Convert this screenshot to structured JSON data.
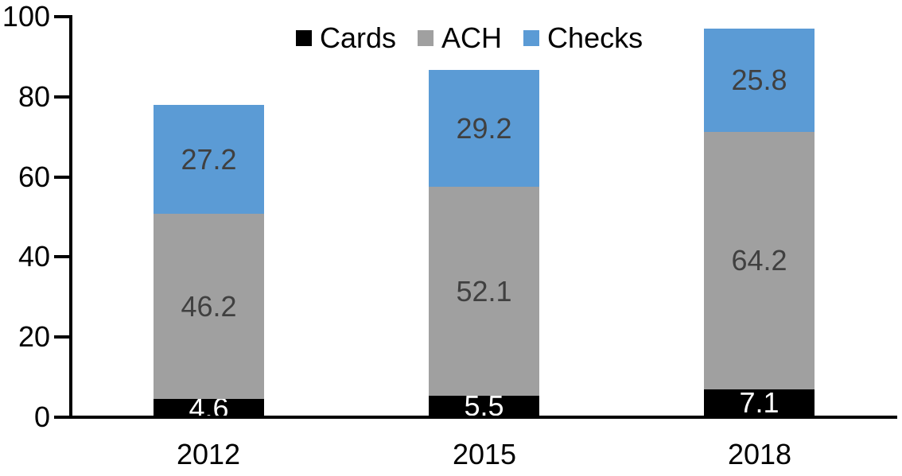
{
  "chart_data": {
    "type": "bar",
    "stacked": true,
    "title": "",
    "xlabel": "",
    "ylabel": "",
    "categories": [
      "2012",
      "2015",
      "2018"
    ],
    "series": [
      {
        "name": "Cards",
        "color": "#000000",
        "label_color": "#ffffff",
        "values": [
          4.6,
          5.5,
          7.1
        ]
      },
      {
        "name": "ACH",
        "color": "#a0a0a0",
        "label_color": "#404040",
        "values": [
          46.2,
          52.1,
          64.2
        ]
      },
      {
        "name": "Checks",
        "color": "#5b9bd5",
        "label_color": "#404040",
        "values": [
          27.2,
          29.2,
          25.8
        ]
      }
    ],
    "ylim": [
      0,
      100
    ],
    "yticks": [
      0,
      20,
      40,
      60,
      80,
      100
    ],
    "grid": false,
    "legend_position": "top-center",
    "data_labels": "center",
    "axis_color": "#000000",
    "background_color": "#ffffff"
  }
}
